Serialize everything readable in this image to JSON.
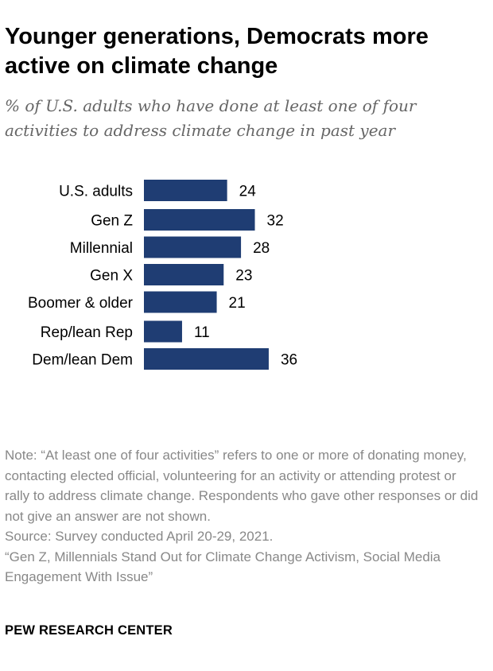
{
  "title": "Younger generations, Democrats more active on climate change",
  "subtitle": "% of U.S. adults who have done at least one of four activities to address climate change in past year",
  "note": "Note: “At least one of four activities” refers to one or more of donating money, contacting elected official, volunteering for an activity or attending protest or rally to address climate change. Respondents who gave other responses or did not give an answer are not shown.",
  "source": "Source: Survey conducted April 20-29, 2021.",
  "report": "“Gen Z, Millennials Stand Out for Climate Change Activism, Social Media Engagement With Issue”",
  "footer": "PEW RESEARCH CENTER",
  "colors": {
    "bar": "#1f3d73"
  },
  "chart_data": {
    "type": "bar",
    "orientation": "horizontal",
    "categories": [
      "U.S. adults",
      "Gen Z",
      "Millennial",
      "Gen X",
      "Boomer & older",
      "Rep/lean Rep",
      "Dem/lean Dem"
    ],
    "values": [
      24,
      32,
      28,
      23,
      21,
      11,
      36
    ],
    "groups": [
      [
        "U.S. adults"
      ],
      [
        "Gen Z",
        "Millennial",
        "Gen X",
        "Boomer & older"
      ],
      [
        "Rep/lean Rep",
        "Dem/lean Dem"
      ]
    ],
    "xlim": [
      0,
      100
    ],
    "grid": false,
    "data_labels": true
  }
}
